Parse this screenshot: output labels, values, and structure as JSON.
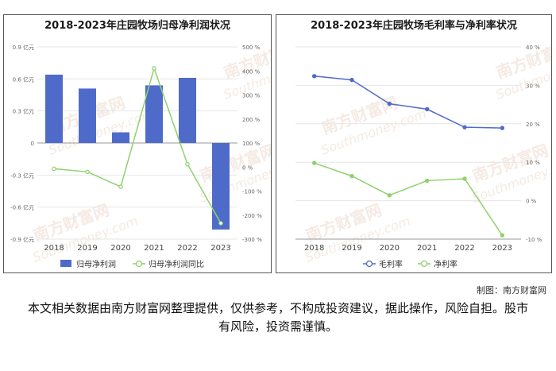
{
  "chart_data": [
    {
      "type": "bar+line",
      "title": "2018-2023年庄园牧场归母净利润状况",
      "categories": [
        "2018",
        "2019",
        "2020",
        "2021",
        "2022",
        "2023"
      ],
      "series": [
        {
          "name": "归母净利润",
          "kind": "bar",
          "axis": "left",
          "color": "#4f6bc9",
          "values": [
            0.64,
            0.51,
            0.1,
            0.54,
            0.61,
            -0.81
          ]
        },
        {
          "name": "归母净利润同比",
          "kind": "line",
          "axis": "right",
          "color": "#8fd16c",
          "values": [
            -7,
            -20,
            -82,
            411,
            12,
            -234
          ]
        }
      ],
      "ylim_left": [
        -0.9,
        0.9
      ],
      "yticks_left": [
        "0.9 亿元",
        "0.6 亿元",
        "0.3 亿元",
        "0",
        "-0.3 亿元",
        "-0.6 亿元",
        "-0.9 亿元"
      ],
      "ylim_right": [
        -300,
        500
      ],
      "yticks_right": [
        "500 %",
        "400 %",
        "300 %",
        "200 %",
        "100 %",
        "0 %",
        "-100 %",
        "-200 %",
        "-300 %"
      ],
      "legend": "bottom",
      "grid": true
    },
    {
      "type": "line",
      "title": "2018-2023年庄园牧场毛利率与净利率状况",
      "categories": [
        "2018",
        "2019",
        "2020",
        "2021",
        "2022",
        "2023"
      ],
      "series": [
        {
          "name": "毛利率",
          "color": "#4f6bc9",
          "values": [
            32.4,
            31.4,
            25.2,
            23.8,
            19.1,
            18.9
          ]
        },
        {
          "name": "净利率",
          "color": "#8fd16c",
          "values": [
            9.8,
            6.4,
            1.4,
            5.2,
            5.7,
            -9.0
          ]
        }
      ],
      "ylim_right": [
        -10,
        40
      ],
      "yticks_right": [
        "40 %",
        "30 %",
        "20 %",
        "10 %",
        "0 %",
        "-10 %"
      ],
      "legend": "bottom",
      "grid": true
    }
  ],
  "watermark": {
    "brand": "南方财富网",
    "site": "Southmoney.com"
  },
  "credit": "制图：南方财富网",
  "disclaimer": "本文相关数据由南方财富网整理提供，仅供参考，不构成投资建议，据此操作，风险自担。股市有风险，投资需谨慎。"
}
